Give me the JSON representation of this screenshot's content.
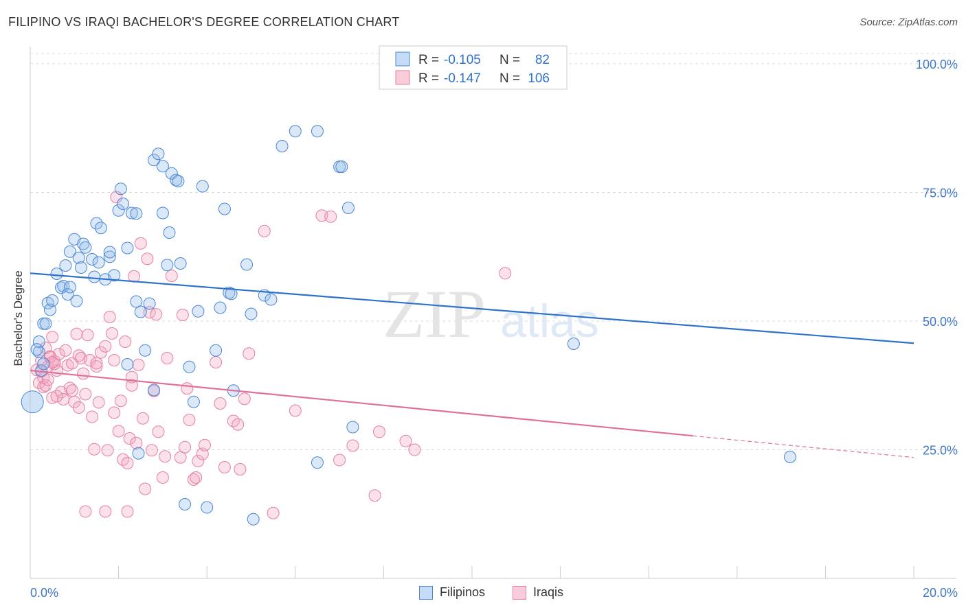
{
  "title": "FILIPINO VS IRAQI BACHELOR'S DEGREE CORRELATION CHART",
  "source": "Source: ZipAtlas.com",
  "watermark": {
    "zip": "ZIP",
    "atlas": "atlas"
  },
  "chart_data": {
    "type": "scatter",
    "ylabel": "Bachelor's Degree",
    "xlim": [
      0,
      20
    ],
    "ylim": [
      0,
      102
    ],
    "x_tick_labels": [
      "0.0%",
      "20.0%"
    ],
    "y_ticks": [
      25,
      50,
      75,
      100
    ],
    "y_tick_labels": [
      "25.0%",
      "50.0%",
      "75.0%",
      "100.0%"
    ],
    "colors": {
      "filipinos": "#4a86d4",
      "iraqis": "#e57fa3",
      "line_filipinos": "#2e72cc",
      "line_iraqis": "#e0709a",
      "axis_label": "#3f77c4"
    },
    "legend": {
      "rows": [
        {
          "r_label": "R = ",
          "r_value": "-0.105",
          "n_label": "N = ",
          "n_value": "82"
        },
        {
          "r_label": "R = ",
          "r_value": "-0.147",
          "n_label": "N = ",
          "n_value": "106"
        }
      ]
    },
    "series": [
      {
        "name": "Filipinos",
        "trend": {
          "x": [
            0,
            20
          ],
          "y": [
            59.3,
            45.7
          ]
        },
        "points": [
          [
            0.3,
            49.5
          ],
          [
            0.35,
            49.5
          ],
          [
            0.4,
            53.5
          ],
          [
            0.45,
            52.2
          ],
          [
            0.5,
            54
          ],
          [
            0.6,
            59.2
          ],
          [
            0.7,
            56.5
          ],
          [
            0.75,
            56.8
          ],
          [
            0.8,
            60.8
          ],
          [
            0.85,
            55.2
          ],
          [
            0.9,
            56.6
          ],
          [
            0.9,
            63.5
          ],
          [
            1.0,
            65.9
          ],
          [
            1.05,
            53.9
          ],
          [
            1.1,
            62.3
          ],
          [
            1.15,
            60.4
          ],
          [
            1.2,
            65
          ],
          [
            1.25,
            64.3
          ],
          [
            1.4,
            62
          ],
          [
            1.45,
            58.6
          ],
          [
            1.5,
            69
          ],
          [
            1.55,
            61.4
          ],
          [
            1.6,
            68.1
          ],
          [
            1.7,
            58.1
          ],
          [
            1.8,
            62.5
          ],
          [
            1.8,
            63.4
          ],
          [
            1.9,
            58.9
          ],
          [
            2.0,
            71.5
          ],
          [
            2.05,
            75.7
          ],
          [
            2.1,
            72.8
          ],
          [
            2.2,
            64.2
          ],
          [
            2.3,
            71
          ],
          [
            2.4,
            70.9
          ],
          [
            2.2,
            41.6
          ],
          [
            2.4,
            53.8
          ],
          [
            2.5,
            51.8
          ],
          [
            2.6,
            44.3
          ],
          [
            2.7,
            53.4
          ],
          [
            2.8,
            36.6
          ],
          [
            2.8,
            81.3
          ],
          [
            2.9,
            82.5
          ],
          [
            3.0,
            71
          ],
          [
            3.0,
            80.1
          ],
          [
            3.1,
            60.9
          ],
          [
            3.15,
            67.2
          ],
          [
            3.2,
            78.7
          ],
          [
            3.3,
            77.4
          ],
          [
            3.35,
            77.2
          ],
          [
            3.4,
            61.2
          ],
          [
            3.6,
            41.1
          ],
          [
            3.7,
            34.3
          ],
          [
            3.8,
            51.9
          ],
          [
            3.9,
            76.2
          ],
          [
            4.0,
            13.8
          ],
          [
            4.2,
            44.3
          ],
          [
            4.3,
            52.6
          ],
          [
            4.4,
            71.8
          ],
          [
            4.5,
            55.5
          ],
          [
            4.55,
            55.3
          ],
          [
            4.6,
            36.5
          ],
          [
            4.9,
            61
          ],
          [
            5.0,
            51.4
          ],
          [
            5.3,
            55
          ],
          [
            5.45,
            54.2
          ],
          [
            5.7,
            84
          ],
          [
            6.0,
            86.9
          ],
          [
            6.5,
            22.5
          ],
          [
            6.5,
            86.9
          ],
          [
            7.0,
            80
          ],
          [
            7.05,
            80
          ],
          [
            7.2,
            72
          ],
          [
            7.3,
            29.4
          ],
          [
            2.45,
            24.3
          ],
          [
            3.5,
            14.4
          ],
          [
            5.05,
            11.5
          ],
          [
            12.3,
            45.6
          ],
          [
            17.2,
            23.6
          ],
          [
            0.2,
            44
          ],
          [
            0.25,
            40.4
          ],
          [
            0.3,
            41.7
          ],
          [
            0.2,
            46
          ],
          [
            0.15,
            44.5
          ]
        ],
        "big_point": [
          0.05,
          34.3
        ]
      },
      {
        "name": "Iraqis",
        "trend": {
          "x": [
            0,
            15
          ],
          "y": [
            40.4,
            27.7
          ]
        },
        "trend_dash": {
          "x": [
            15,
            20
          ],
          "y": [
            27.7,
            23.5
          ]
        },
        "points": [
          [
            0.15,
            40.5
          ],
          [
            0.2,
            38
          ],
          [
            0.25,
            42.3
          ],
          [
            0.3,
            37.2
          ],
          [
            0.35,
            44.8
          ],
          [
            0.4,
            41.1
          ],
          [
            0.45,
            43.1
          ],
          [
            0.5,
            46.9
          ],
          [
            0.5,
            35.1
          ],
          [
            0.55,
            42.2
          ],
          [
            0.6,
            40.4
          ],
          [
            0.65,
            43.6
          ],
          [
            0.7,
            36.2
          ],
          [
            0.75,
            34.8
          ],
          [
            0.8,
            44.3
          ],
          [
            0.85,
            41.4
          ],
          [
            0.9,
            37
          ],
          [
            0.95,
            41.8
          ],
          [
            0.95,
            36.5
          ],
          [
            1.0,
            34.3
          ],
          [
            1.05,
            47.5
          ],
          [
            1.1,
            43.3
          ],
          [
            1.15,
            42.8
          ],
          [
            1.2,
            39.8
          ],
          [
            1.3,
            47.3
          ],
          [
            1.35,
            42.4
          ],
          [
            1.4,
            31.4
          ],
          [
            1.45,
            25.1
          ],
          [
            1.5,
            41.2
          ],
          [
            1.55,
            34.2
          ],
          [
            1.6,
            43.9
          ],
          [
            1.7,
            45.1
          ],
          [
            1.75,
            24.9
          ],
          [
            1.8,
            50.8
          ],
          [
            1.85,
            47.6
          ],
          [
            1.9,
            42.4
          ],
          [
            1.9,
            32.2
          ],
          [
            1.95,
            74.1
          ],
          [
            2.0,
            28.6
          ],
          [
            2.05,
            34.5
          ],
          [
            2.1,
            23.1
          ],
          [
            2.15,
            46
          ],
          [
            2.2,
            22.4
          ],
          [
            2.25,
            27.2
          ],
          [
            2.3,
            39.1
          ],
          [
            2.35,
            58.7
          ],
          [
            2.4,
            26.3
          ],
          [
            2.45,
            41.5
          ],
          [
            2.5,
            65.1
          ],
          [
            2.55,
            31.1
          ],
          [
            2.6,
            17.4
          ],
          [
            2.65,
            62.1
          ],
          [
            2.7,
            51.7
          ],
          [
            2.75,
            24.9
          ],
          [
            2.8,
            36.4
          ],
          [
            2.85,
            51.3
          ],
          [
            2.9,
            28.5
          ],
          [
            3.0,
            19.6
          ],
          [
            3.05,
            23.7
          ],
          [
            3.1,
            42.8
          ],
          [
            3.2,
            58.8
          ],
          [
            3.4,
            23.5
          ],
          [
            3.45,
            51.2
          ],
          [
            3.5,
            25.5
          ],
          [
            3.55,
            36.9
          ],
          [
            3.6,
            30.8
          ],
          [
            3.7,
            19.2
          ],
          [
            3.75,
            19.6
          ],
          [
            3.8,
            22.8
          ],
          [
            3.9,
            24.2
          ],
          [
            3.95,
            25.9
          ],
          [
            4.2,
            42
          ],
          [
            4.3,
            34
          ],
          [
            4.4,
            21.6
          ],
          [
            4.6,
            30.6
          ],
          [
            4.7,
            29.9
          ],
          [
            4.75,
            21.2
          ],
          [
            4.85,
            34.9
          ],
          [
            4.95,
            43.7
          ],
          [
            5.3,
            67.5
          ],
          [
            5.5,
            12.7
          ],
          [
            6.0,
            32.6
          ],
          [
            6.6,
            70.5
          ],
          [
            6.8,
            70.3
          ],
          [
            7.0,
            23
          ],
          [
            7.3,
            25.8
          ],
          [
            7.8,
            16.1
          ],
          [
            7.9,
            28.5
          ],
          [
            8.5,
            26.7
          ],
          [
            8.7,
            25
          ],
          [
            10.75,
            59.3
          ],
          [
            1.7,
            13
          ],
          [
            1.25,
            13
          ],
          [
            2.2,
            13
          ],
          [
            0.3,
            39
          ],
          [
            0.35,
            37.5
          ],
          [
            0.45,
            43
          ],
          [
            0.55,
            41.7
          ],
          [
            0.6,
            35.4
          ],
          [
            0.25,
            40.2
          ],
          [
            0.4,
            38.6
          ],
          [
            0.5,
            42
          ],
          [
            1.1,
            33.2
          ],
          [
            1.25,
            35.8
          ],
          [
            1.5,
            41.8
          ],
          [
            2.3,
            37.5
          ]
        ]
      }
    ]
  }
}
